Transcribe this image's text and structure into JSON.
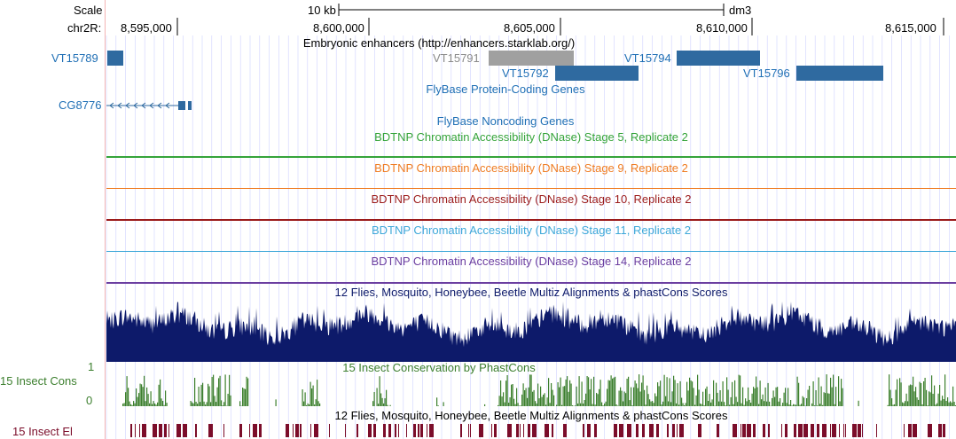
{
  "colors": {
    "grid": "#cfd2ff",
    "link_blue": "#1f6fb5",
    "feature_blue": "#2f6aa0",
    "feature_gray": "#a0a0a0",
    "stage5": "#35a43a",
    "stage9": "#ef7c22",
    "stage10": "#9b1b1b",
    "stage11": "#3ea8d9",
    "stage14": "#6b3ea0",
    "multiz": "#0d1a6a",
    "insect_cons": "#3c7f2e",
    "insect_el": "#7b0d2a"
  },
  "ruler": {
    "scale_label": "Scale",
    "chrom_label": "chr2R:",
    "scale_bar_text": "10 kb",
    "assembly": "dm3",
    "positions": [
      "8,595,000",
      "8,600,000",
      "8,605,000",
      "8,610,000",
      "8,615,000"
    ]
  },
  "tracks": {
    "enhancers": {
      "title": "Embryonic enhancers (http://enhancers.starklab.org/)",
      "left_label": "VT15789",
      "items": [
        "VT15791",
        "VT15792",
        "VT15794",
        "VT15796"
      ]
    },
    "flybase_coding": {
      "title": "FlyBase Protein-Coding Genes",
      "gene_label": "CG8776"
    },
    "flybase_noncoding": {
      "title": "FlyBase Noncoding Genes"
    },
    "dnase5": {
      "title": "BDTNP Chromatin Accessibility (DNase) Stage 5, Replicate 2"
    },
    "dnase9": {
      "title": "BDTNP Chromatin Accessibility (DNase) Stage 9, Replicate 2"
    },
    "dnase10": {
      "title": "BDTNP Chromatin Accessibility (DNase) Stage 10, Replicate 2"
    },
    "dnase11": {
      "title": "BDTNP Chromatin Accessibility (DNase) Stage 11, Replicate 2"
    },
    "dnase14": {
      "title": "BDTNP Chromatin Accessibility (DNase) Stage 14, Replicate 2"
    },
    "multiz": {
      "title": "12 Flies, Mosquito, Honeybee, Beetle Multiz Alignments & phastCons Scores"
    },
    "insect_cons": {
      "title": "15 Insect Conservation by PhastCons",
      "left_label": "15 Insect Cons",
      "y_max": "1",
      "y_min": "0"
    },
    "insect_el": {
      "title": "12 Flies, Mosquito, Honeybee, Beetle Multiz Alignments & phastCons Scores",
      "left_label": "15 Insect El"
    }
  }
}
